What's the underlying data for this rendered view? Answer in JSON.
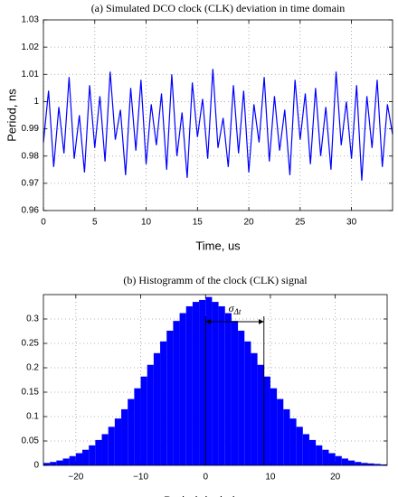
{
  "chart_data": [
    {
      "type": "line",
      "title": "(a)  Simulated DCO clock (CLK) deviation in time domain",
      "xlabel": "Time, us",
      "ylabel": "Period, ns",
      "xlim": [
        0,
        34
      ],
      "xticks": [
        0,
        5,
        10,
        15,
        20,
        25,
        30
      ],
      "ylim": [
        0.96,
        1.03
      ],
      "yticks": [
        0.96,
        0.97,
        0.98,
        0.99,
        1,
        1.01,
        1.02,
        1.03
      ],
      "grid": true,
      "x": [
        0,
        0.5,
        1,
        1.5,
        2,
        2.5,
        3,
        3.5,
        4,
        4.5,
        5,
        5.5,
        6,
        6.5,
        7,
        7.5,
        8,
        8.5,
        9,
        9.5,
        10,
        10.5,
        11,
        11.5,
        12,
        12.5,
        13,
        13.5,
        14,
        14.5,
        15,
        15.5,
        16,
        16.5,
        17,
        17.5,
        18,
        18.5,
        19,
        19.5,
        20,
        20.5,
        21,
        21.5,
        22,
        22.5,
        23,
        23.5,
        24,
        24.5,
        25,
        25.5,
        26,
        26.5,
        27,
        27.5,
        28,
        28.5,
        29,
        29.5,
        30,
        30.5,
        31,
        31.5,
        32,
        32.5,
        33,
        33.5,
        34
      ],
      "series": [
        {
          "color": "#0000ff",
          "values": [
            0.985,
            1.004,
            0.976,
            0.998,
            0.981,
            1.009,
            0.979,
            0.995,
            0.974,
            1.006,
            0.983,
            1.002,
            0.978,
            1.011,
            0.986,
            0.997,
            0.973,
            1.005,
            0.982,
            1.008,
            0.977,
            0.999,
            0.984,
            1.003,
            0.975,
            1.01,
            0.98,
            0.996,
            0.972,
            1.007,
            0.987,
            1.001,
            0.979,
            1.012,
            0.983,
            0.994,
            0.976,
            1.006,
            0.981,
            1.004,
            0.974,
            0.999,
            0.985,
            1.009,
            0.978,
            1.002,
            0.982,
            0.997,
            0.973,
            1.008,
            0.986,
            1.003,
            0.977,
            1.005,
            0.98,
            0.998,
            0.975,
            1.011,
            0.984,
            1.0,
            0.979,
            1.006,
            0.971,
            1.002,
            0.983,
            1.008,
            0.976,
            0.999,
            0.988
          ]
        }
      ]
    },
    {
      "type": "histogram",
      "title": "(b) Histogramm of the clock (CLK) signal",
      "xlabel": "Period deviation, ps",
      "xlim": [
        -25,
        28
      ],
      "xticks": [
        {
          "value": -20,
          "label": "−20"
        },
        {
          "value": -10,
          "label": "−10"
        },
        0,
        10,
        20
      ],
      "ylim": [
        0,
        0.35
      ],
      "yticks": [
        0,
        0.05,
        0.1,
        0.15,
        0.2,
        0.25,
        0.3
      ],
      "grid": true,
      "color": "#0000ff",
      "bins": [
        -25,
        -24,
        -23,
        -22,
        -21,
        -20,
        -19,
        -18,
        -17,
        -16,
        -15,
        -14,
        -13,
        -12,
        -11,
        -10,
        -9,
        -8,
        -7,
        -6,
        -5,
        -4,
        -3,
        -2,
        -1,
        0,
        1,
        2,
        3,
        4,
        5,
        6,
        7,
        8,
        9,
        10,
        11,
        12,
        13,
        14,
        15,
        16,
        17,
        18,
        19,
        20,
        21,
        22,
        23,
        24,
        25,
        26,
        27,
        28
      ],
      "values": [
        0.005,
        0.007,
        0.01,
        0.014,
        0.019,
        0.025,
        0.032,
        0.041,
        0.052,
        0.064,
        0.079,
        0.096,
        0.115,
        0.136,
        0.158,
        0.182,
        0.206,
        0.23,
        0.254,
        0.276,
        0.296,
        0.312,
        0.326,
        0.335,
        0.339,
        0.345,
        0.335,
        0.326,
        0.312,
        0.296,
        0.276,
        0.254,
        0.23,
        0.206,
        0.182,
        0.158,
        0.136,
        0.115,
        0.096,
        0.079,
        0.064,
        0.052,
        0.041,
        0.032,
        0.025,
        0.019,
        0.014,
        0.01,
        0.007,
        0.005,
        0.004,
        0.003,
        0.002
      ],
      "annotation": {
        "symbol": "σ",
        "subscript": "Δt",
        "x_start": 0,
        "x_end": 9
      }
    }
  ]
}
